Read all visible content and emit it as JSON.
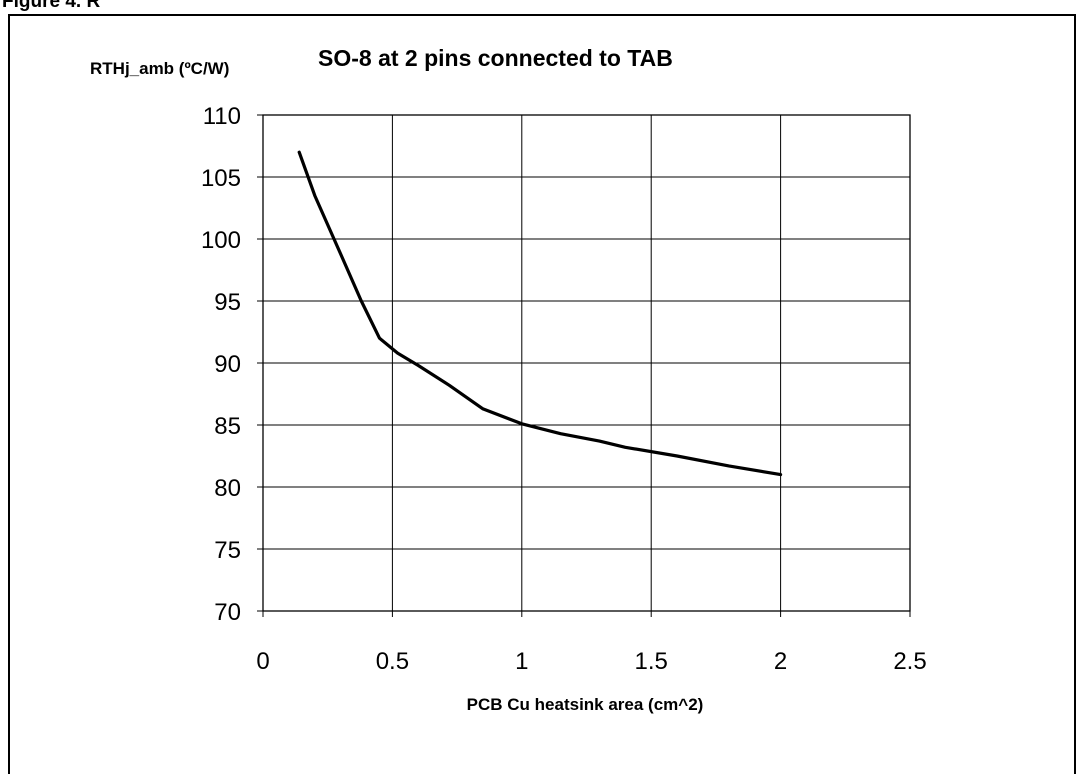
{
  "figure_caption": "Figure 4. R",
  "chart_data": {
    "type": "line",
    "title": "SO-8 at 2 pins connected to TAB",
    "xlabel": "PCB Cu heatsink area (cm^2)",
    "ylabel": "RTHj_amb (ºC/W)",
    "xlim": [
      0,
      2.5
    ],
    "ylim": [
      70,
      110
    ],
    "x_ticks": [
      "0",
      "0.5",
      "1",
      "1.5",
      "2",
      "2.5"
    ],
    "y_ticks": [
      "70",
      "75",
      "80",
      "85",
      "90",
      "95",
      "100",
      "105",
      "110"
    ],
    "grid": true,
    "series": [
      {
        "x": [
          0.14,
          0.2,
          0.3,
          0.38,
          0.45,
          0.52,
          0.6,
          0.72,
          0.85,
          1.0,
          1.15,
          1.3,
          1.4,
          1.6,
          1.8,
          2.0
        ],
        "y": [
          107,
          103.5,
          98.8,
          95,
          92,
          90.8,
          89.8,
          88.2,
          86.3,
          85.1,
          84.3,
          83.7,
          83.2,
          82.5,
          81.7,
          81.0
        ]
      }
    ]
  }
}
